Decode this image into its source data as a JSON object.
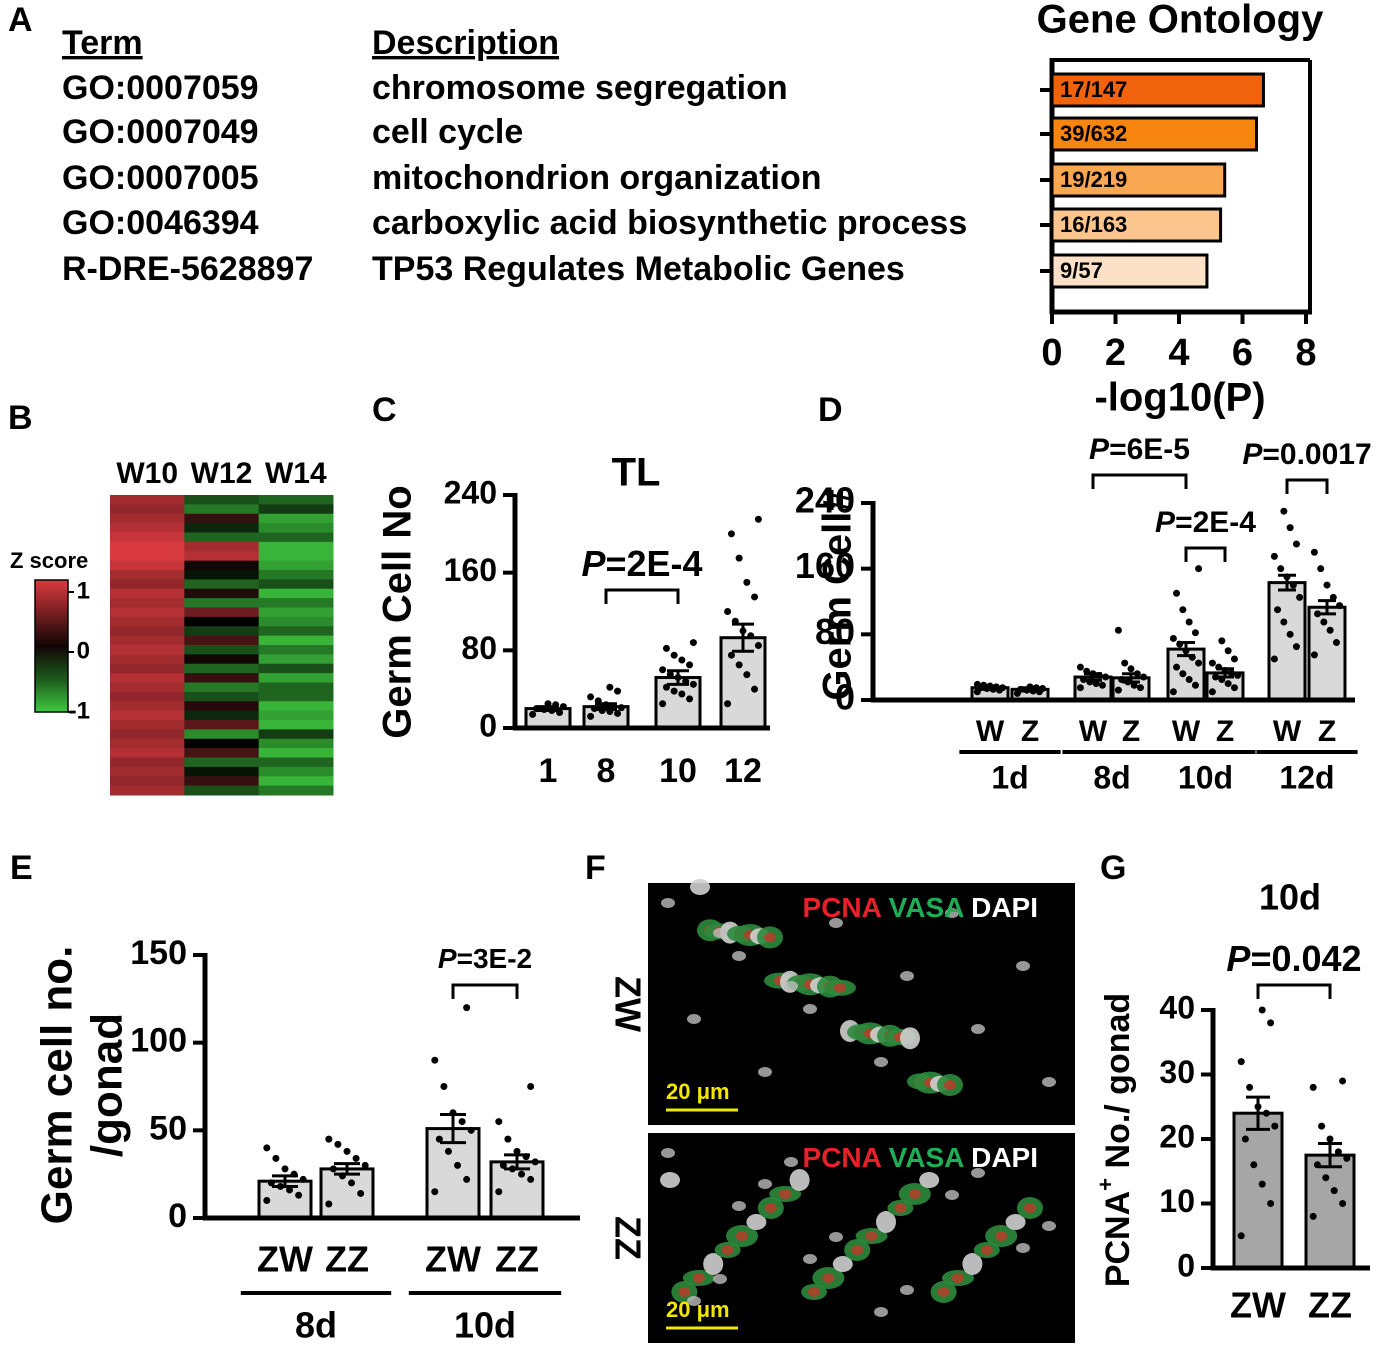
{
  "chart_data": [
    {
      "type": "hbar",
      "panel": "A",
      "title": "Gene Ontology",
      "table": {
        "columns": [
          "Term",
          "Description"
        ],
        "rows": [
          [
            "GO:0007059",
            "chromosome segregation"
          ],
          [
            "GO:0007049",
            "cell cycle"
          ],
          [
            "GO:0007005",
            "mitochondrion organization"
          ],
          [
            "GO:0046394",
            "carboxylic acid biosynthetic process"
          ],
          [
            "R-DRE-5628897",
            "TP53 Regulates Metabolic Genes"
          ]
        ]
      },
      "values": [
        6.66,
        6.44,
        5.44,
        5.31,
        4.88
      ],
      "annotations": [
        "17/147",
        "39/632",
        "19/219",
        "16/163",
        "9/57"
      ],
      "colors": [
        "#f0620c",
        "#f7850f",
        "#f9a851",
        "#fbc58d",
        "#fde1c6"
      ],
      "xlabel": "-log10(P)",
      "xlim": [
        0,
        8
      ],
      "xticks": [
        0,
        2,
        4,
        6,
        8
      ]
    },
    {
      "type": "heatmap",
      "panel": "B",
      "columns": [
        "W10",
        "W12",
        "W14"
      ],
      "colorbar_label": "Z score",
      "zlim": [
        -1,
        1.2
      ],
      "zticks": [
        1,
        0,
        -1
      ],
      "colormap": [
        "#3ec83e",
        "#000000",
        "#d93a3f"
      ],
      "values": [
        [
          0.9,
          -0.4,
          -0.5
        ],
        [
          0.8,
          -0.6,
          -0.3
        ],
        [
          0.9,
          0.3,
          -0.8
        ],
        [
          1.0,
          -0.2,
          -0.7
        ],
        [
          1.1,
          -0.5,
          -0.5
        ],
        [
          1.2,
          0.9,
          -0.9
        ],
        [
          1.2,
          1.0,
          -0.9
        ],
        [
          1.1,
          0.1,
          -0.8
        ],
        [
          0.9,
          -0.1,
          -0.6
        ],
        [
          0.8,
          -0.5,
          -0.4
        ],
        [
          1.0,
          0.2,
          -0.9
        ],
        [
          0.9,
          -0.6,
          -0.6
        ],
        [
          1.0,
          0.6,
          -0.8
        ],
        [
          0.9,
          0.0,
          -0.7
        ],
        [
          0.8,
          -0.3,
          -0.5
        ],
        [
          0.9,
          0.4,
          -0.9
        ],
        [
          1.0,
          -0.4,
          -0.6
        ],
        [
          0.9,
          0.1,
          -0.8
        ],
        [
          0.8,
          -0.5,
          -0.4
        ],
        [
          1.0,
          0.3,
          -0.8
        ],
        [
          0.9,
          -0.6,
          -0.5
        ],
        [
          0.8,
          -0.4,
          -0.5
        ],
        [
          0.9,
          0.2,
          -0.9
        ],
        [
          1.0,
          -0.2,
          -0.8
        ],
        [
          0.9,
          0.5,
          -0.9
        ],
        [
          0.8,
          -0.7,
          -0.3
        ],
        [
          0.9,
          0.0,
          -0.7
        ],
        [
          1.0,
          0.4,
          -0.9
        ],
        [
          0.8,
          -0.5,
          -0.5
        ],
        [
          0.9,
          -0.1,
          -0.7
        ],
        [
          0.8,
          0.3,
          -0.9
        ],
        [
          0.9,
          -0.4,
          -0.6
        ]
      ]
    },
    {
      "type": "bar",
      "panel": "C",
      "title": "TL",
      "ylabel": "Germ Cell No",
      "color": "#d9d9d9",
      "categories": [
        "1",
        "8",
        "10",
        "12"
      ],
      "values": [
        20,
        22,
        52,
        93
      ],
      "errors": [
        2,
        3,
        7,
        14
      ],
      "points": [
        [
          14,
          16,
          18,
          19,
          20,
          22,
          24,
          25
        ],
        [
          12,
          15,
          17,
          18,
          20,
          21,
          22,
          24,
          28,
          32,
          38,
          42
        ],
        [
          25,
          30,
          35,
          38,
          42,
          45,
          48,
          52,
          55,
          60,
          65,
          70,
          75,
          82,
          88
        ],
        [
          25,
          40,
          55,
          65,
          75,
          85,
          95,
          100,
          110,
          120,
          135,
          150,
          175,
          200,
          215
        ]
      ],
      "ylim": [
        0,
        240
      ],
      "yticks": [
        0,
        80,
        160,
        240
      ],
      "significance": [
        {
          "between": [
            [
              1
            ],
            [
              2
            ]
          ],
          "p": "P",
          "text": "=2E-4"
        }
      ]
    },
    {
      "type": "bar",
      "panel": "D",
      "ylabel": "Germ Cell#",
      "color": "#d9d9d9",
      "groups": [
        "1d",
        "8d",
        "10d",
        "12d"
      ],
      "subcategories": [
        "W",
        "Z"
      ],
      "values": [
        [
          15,
          13
        ],
        [
          28,
          27
        ],
        [
          62,
          33
        ],
        [
          143,
          113
        ]
      ],
      "errors": [
        [
          2,
          2
        ],
        [
          4,
          5
        ],
        [
          8,
          5
        ],
        [
          9,
          8
        ]
      ],
      "points": [
        [
          [
            10,
            12,
            13,
            14,
            15,
            15,
            16,
            17,
            18,
            19
          ],
          [
            8,
            10,
            11,
            12,
            13,
            14,
            15,
            16
          ]
        ],
        [
          [
            15,
            18,
            20,
            22,
            25,
            28,
            30,
            32,
            35,
            40
          ],
          [
            12,
            15,
            18,
            22,
            25,
            28,
            32,
            38,
            45,
            85
          ]
        ],
        [
          [
            10,
            18,
            25,
            32,
            40,
            45,
            52,
            60,
            68,
            75,
            82,
            95,
            110,
            130,
            160
          ],
          [
            10,
            15,
            20,
            25,
            28,
            30,
            33,
            36,
            40,
            45,
            50,
            60,
            72
          ]
        ],
        [
          [
            50,
            65,
            80,
            95,
            110,
            125,
            140,
            150,
            160,
            175,
            190,
            210,
            230
          ],
          [
            55,
            70,
            85,
            95,
            105,
            115,
            125,
            140,
            160,
            180
          ]
        ]
      ],
      "ylim": [
        0,
        240
      ],
      "yticks": [
        0,
        80,
        160,
        240
      ],
      "significance": [
        {
          "between": [
            [
              1,
              0
            ],
            [
              2,
              0
            ]
          ],
          "p": "P",
          "text": "=6E-5"
        },
        {
          "between": [
            [
              2,
              0
            ],
            [
              2,
              1
            ]
          ],
          "p": "P",
          "text": "=2E-4"
        },
        {
          "between": [
            [
              3,
              0
            ],
            [
              3,
              1
            ]
          ],
          "p": "P",
          "text": "=0.0017"
        }
      ]
    },
    {
      "type": "bar",
      "panel": "E",
      "ylabel": [
        "Germ cell no.",
        "/gonad"
      ],
      "color": "#d9d9d9",
      "groups": [
        "8d",
        "10d"
      ],
      "subcategories": [
        "ZW",
        "ZZ"
      ],
      "values": [
        [
          21,
          28
        ],
        [
          51,
          32
        ]
      ],
      "errors": [
        [
          3,
          3
        ],
        [
          8,
          4
        ]
      ],
      "points": [
        [
          [
            10,
            13,
            16,
            18,
            20,
            22,
            25,
            28,
            34,
            40
          ],
          [
            8,
            14,
            20,
            24,
            28,
            30,
            34,
            38,
            42,
            45
          ]
        ],
        [
          [
            15,
            22,
            30,
            38,
            45,
            50,
            55,
            60,
            75,
            90,
            120
          ],
          [
            15,
            22,
            25,
            28,
            30,
            32,
            35,
            38,
            45,
            55,
            75
          ]
        ]
      ],
      "ylim": [
        0,
        150
      ],
      "yticks": [
        0,
        50,
        100,
        150
      ],
      "significance": [
        {
          "between": [
            [
              1,
              0
            ],
            [
              1,
              1
            ]
          ],
          "p": "P",
          "text": "=3E-2"
        }
      ]
    },
    {
      "type": "bar",
      "panel": "G",
      "title": "10d",
      "ylabel": {
        "text": "PCNA",
        "sup": "+",
        "rest": " No./ gonad"
      },
      "color": "#a6a6a6",
      "categories": [
        "ZW",
        "ZZ"
      ],
      "values": [
        24,
        17.5
      ],
      "errors": [
        2.5,
        1.8
      ],
      "points": [
        [
          5,
          10,
          13,
          16,
          20,
          22,
          24,
          25,
          28,
          32,
          38,
          40
        ],
        [
          8,
          10,
          12,
          14,
          16,
          17,
          18,
          20,
          22,
          28,
          29
        ]
      ],
      "ylim": [
        0,
        40
      ],
      "yticks": [
        0,
        10,
        20,
        30,
        40
      ],
      "significance": [
        {
          "between": [
            [
              0
            ],
            [
              1
            ]
          ],
          "p": "P",
          "text": "=0.042"
        }
      ]
    }
  ],
  "image_panel": {
    "panel": "F",
    "images": [
      {
        "sample": "ZW",
        "stains": [
          {
            "name": "PCNA",
            "color": "#e8202a"
          },
          {
            "name": "VASA",
            "color": "#1fae55"
          },
          {
            "name": "DAPI",
            "color": "#ffffff"
          }
        ],
        "scale_bar": "20 μm"
      },
      {
        "sample": "ZZ",
        "stains": [
          {
            "name": "PCNA",
            "color": "#e8202a"
          },
          {
            "name": "VASA",
            "color": "#1fae55"
          },
          {
            "name": "DAPI",
            "color": "#ffffff"
          }
        ],
        "scale_bar": "20 μm"
      }
    ]
  }
}
